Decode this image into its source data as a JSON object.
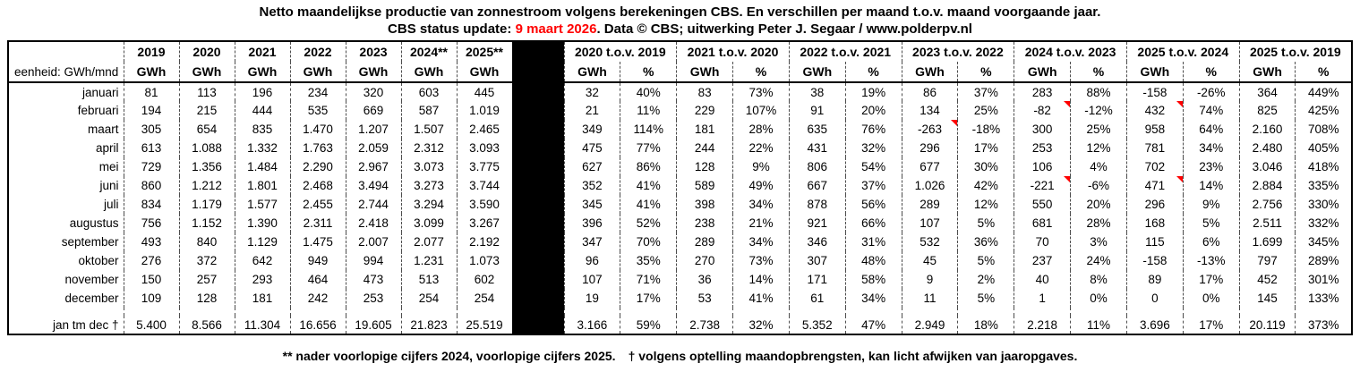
{
  "title": "Netto maandelijkse productie van zonnestroom volgens berekeningen CBS. En verschillen per maand t.o.v. maand voorgaande jaar.",
  "subtitle": {
    "prefix": "CBS status update: ",
    "date": "9 maart 2026",
    "suffix": ". Data © CBS; uitwerking Peter J. Segaar / www.polderpv.nl"
  },
  "footer": {
    "note1": "** nader voorlopige cijfers 2024, voorlopige cijfers 2025.",
    "note2": "† volgens optelling maandopbrengsten, kan licht afwijken van jaaropgaves."
  },
  "colors": {
    "update_date_red": "#FF0000",
    "comment_marker_red": "#FF0000",
    "separator_column_black": "#000000"
  },
  "chart_data": {
    "type": "table",
    "unit_label": "eenheid: GWh/mnd",
    "year_headers": [
      "2019",
      "2020",
      "2021",
      "2022",
      "2023",
      "2024**",
      "2025**"
    ],
    "year_unit": "GWh",
    "diff_group_headers": [
      "2020 t.o.v. 2019",
      "2021 t.o.v. 2020",
      "2022 t.o.v. 2021",
      "2023 t.o.v. 2022",
      "2024 t.o.v. 2023",
      "2025 t.o.v. 2024",
      "2025 t.o.v. 2019"
    ],
    "diff_sub_headers": [
      "GWh",
      "%"
    ],
    "rows": [
      {
        "label": "januari",
        "years": [
          "81",
          "113",
          "196",
          "234",
          "320",
          "603",
          "445"
        ],
        "diffs": [
          "32",
          "40%",
          "83",
          "73%",
          "38",
          "19%",
          "86",
          "37%",
          "283",
          "88%",
          "-158",
          "-26%",
          "364",
          "449%"
        ],
        "markers": []
      },
      {
        "label": "februari",
        "years": [
          "194",
          "215",
          "444",
          "535",
          "669",
          "587",
          "1.019"
        ],
        "diffs": [
          "21",
          "11%",
          "229",
          "107%",
          "91",
          "20%",
          "134",
          "25%",
          "-82",
          "-12%",
          "432",
          "74%",
          "825",
          "425%"
        ],
        "markers": [
          8,
          10
        ]
      },
      {
        "label": "maart",
        "years": [
          "305",
          "654",
          "835",
          "1.470",
          "1.207",
          "1.507",
          "2.465"
        ],
        "diffs": [
          "349",
          "114%",
          "181",
          "28%",
          "635",
          "76%",
          "-263",
          "-18%",
          "300",
          "25%",
          "958",
          "64%",
          "2.160",
          "708%"
        ],
        "markers": [
          6
        ]
      },
      {
        "label": "april",
        "years": [
          "613",
          "1.088",
          "1.332",
          "1.763",
          "2.059",
          "2.312",
          "3.093"
        ],
        "diffs": [
          "475",
          "77%",
          "244",
          "22%",
          "431",
          "32%",
          "296",
          "17%",
          "253",
          "12%",
          "781",
          "34%",
          "2.480",
          "405%"
        ],
        "markers": []
      },
      {
        "label": "mei",
        "years": [
          "729",
          "1.356",
          "1.484",
          "2.290",
          "2.967",
          "3.073",
          "3.775"
        ],
        "diffs": [
          "627",
          "86%",
          "128",
          "9%",
          "806",
          "54%",
          "677",
          "30%",
          "106",
          "4%",
          "702",
          "23%",
          "3.046",
          "418%"
        ],
        "markers": []
      },
      {
        "label": "juni",
        "years": [
          "860",
          "1.212",
          "1.801",
          "2.468",
          "3.494",
          "3.273",
          "3.744"
        ],
        "diffs": [
          "352",
          "41%",
          "589",
          "49%",
          "667",
          "37%",
          "1.026",
          "42%",
          "-221",
          "-6%",
          "471",
          "14%",
          "2.884",
          "335%"
        ],
        "markers": [
          8,
          10
        ]
      },
      {
        "label": "juli",
        "years": [
          "834",
          "1.179",
          "1.577",
          "2.455",
          "2.744",
          "3.294",
          "3.590"
        ],
        "diffs": [
          "345",
          "41%",
          "398",
          "34%",
          "878",
          "56%",
          "289",
          "12%",
          "550",
          "20%",
          "296",
          "9%",
          "2.756",
          "330%"
        ],
        "markers": []
      },
      {
        "label": "augustus",
        "years": [
          "756",
          "1.152",
          "1.390",
          "2.311",
          "2.418",
          "3.099",
          "3.267"
        ],
        "diffs": [
          "396",
          "52%",
          "238",
          "21%",
          "921",
          "66%",
          "107",
          "5%",
          "681",
          "28%",
          "168",
          "5%",
          "2.511",
          "332%"
        ],
        "markers": []
      },
      {
        "label": "september",
        "years": [
          "493",
          "840",
          "1.129",
          "1.475",
          "2.007",
          "2.077",
          "2.192"
        ],
        "diffs": [
          "347",
          "70%",
          "289",
          "34%",
          "346",
          "31%",
          "532",
          "36%",
          "70",
          "3%",
          "115",
          "6%",
          "1.699",
          "345%"
        ],
        "markers": []
      },
      {
        "label": "oktober",
        "years": [
          "276",
          "372",
          "642",
          "949",
          "994",
          "1.231",
          "1.073"
        ],
        "diffs": [
          "96",
          "35%",
          "270",
          "73%",
          "307",
          "48%",
          "45",
          "5%",
          "237",
          "24%",
          "-158",
          "-13%",
          "797",
          "289%"
        ],
        "markers": []
      },
      {
        "label": "november",
        "years": [
          "150",
          "257",
          "293",
          "464",
          "473",
          "513",
          "602"
        ],
        "diffs": [
          "107",
          "71%",
          "36",
          "14%",
          "171",
          "58%",
          "9",
          "2%",
          "40",
          "8%",
          "89",
          "17%",
          "452",
          "301%"
        ],
        "markers": []
      },
      {
        "label": "december",
        "years": [
          "109",
          "128",
          "181",
          "242",
          "253",
          "254",
          "254"
        ],
        "diffs": [
          "19",
          "17%",
          "53",
          "41%",
          "61",
          "34%",
          "11",
          "5%",
          "1",
          "0%",
          "0",
          "0%",
          "145",
          "133%"
        ],
        "markers": []
      }
    ],
    "total": {
      "label": "jan tm dec †",
      "years": [
        "5.400",
        "8.566",
        "11.304",
        "16.656",
        "19.605",
        "21.823",
        "25.519"
      ],
      "diffs": [
        "3.166",
        "59%",
        "2.738",
        "32%",
        "5.352",
        "47%",
        "2.949",
        "18%",
        "2.218",
        "11%",
        "3.696",
        "17%",
        "20.119",
        "373%"
      ],
      "markers": []
    }
  }
}
